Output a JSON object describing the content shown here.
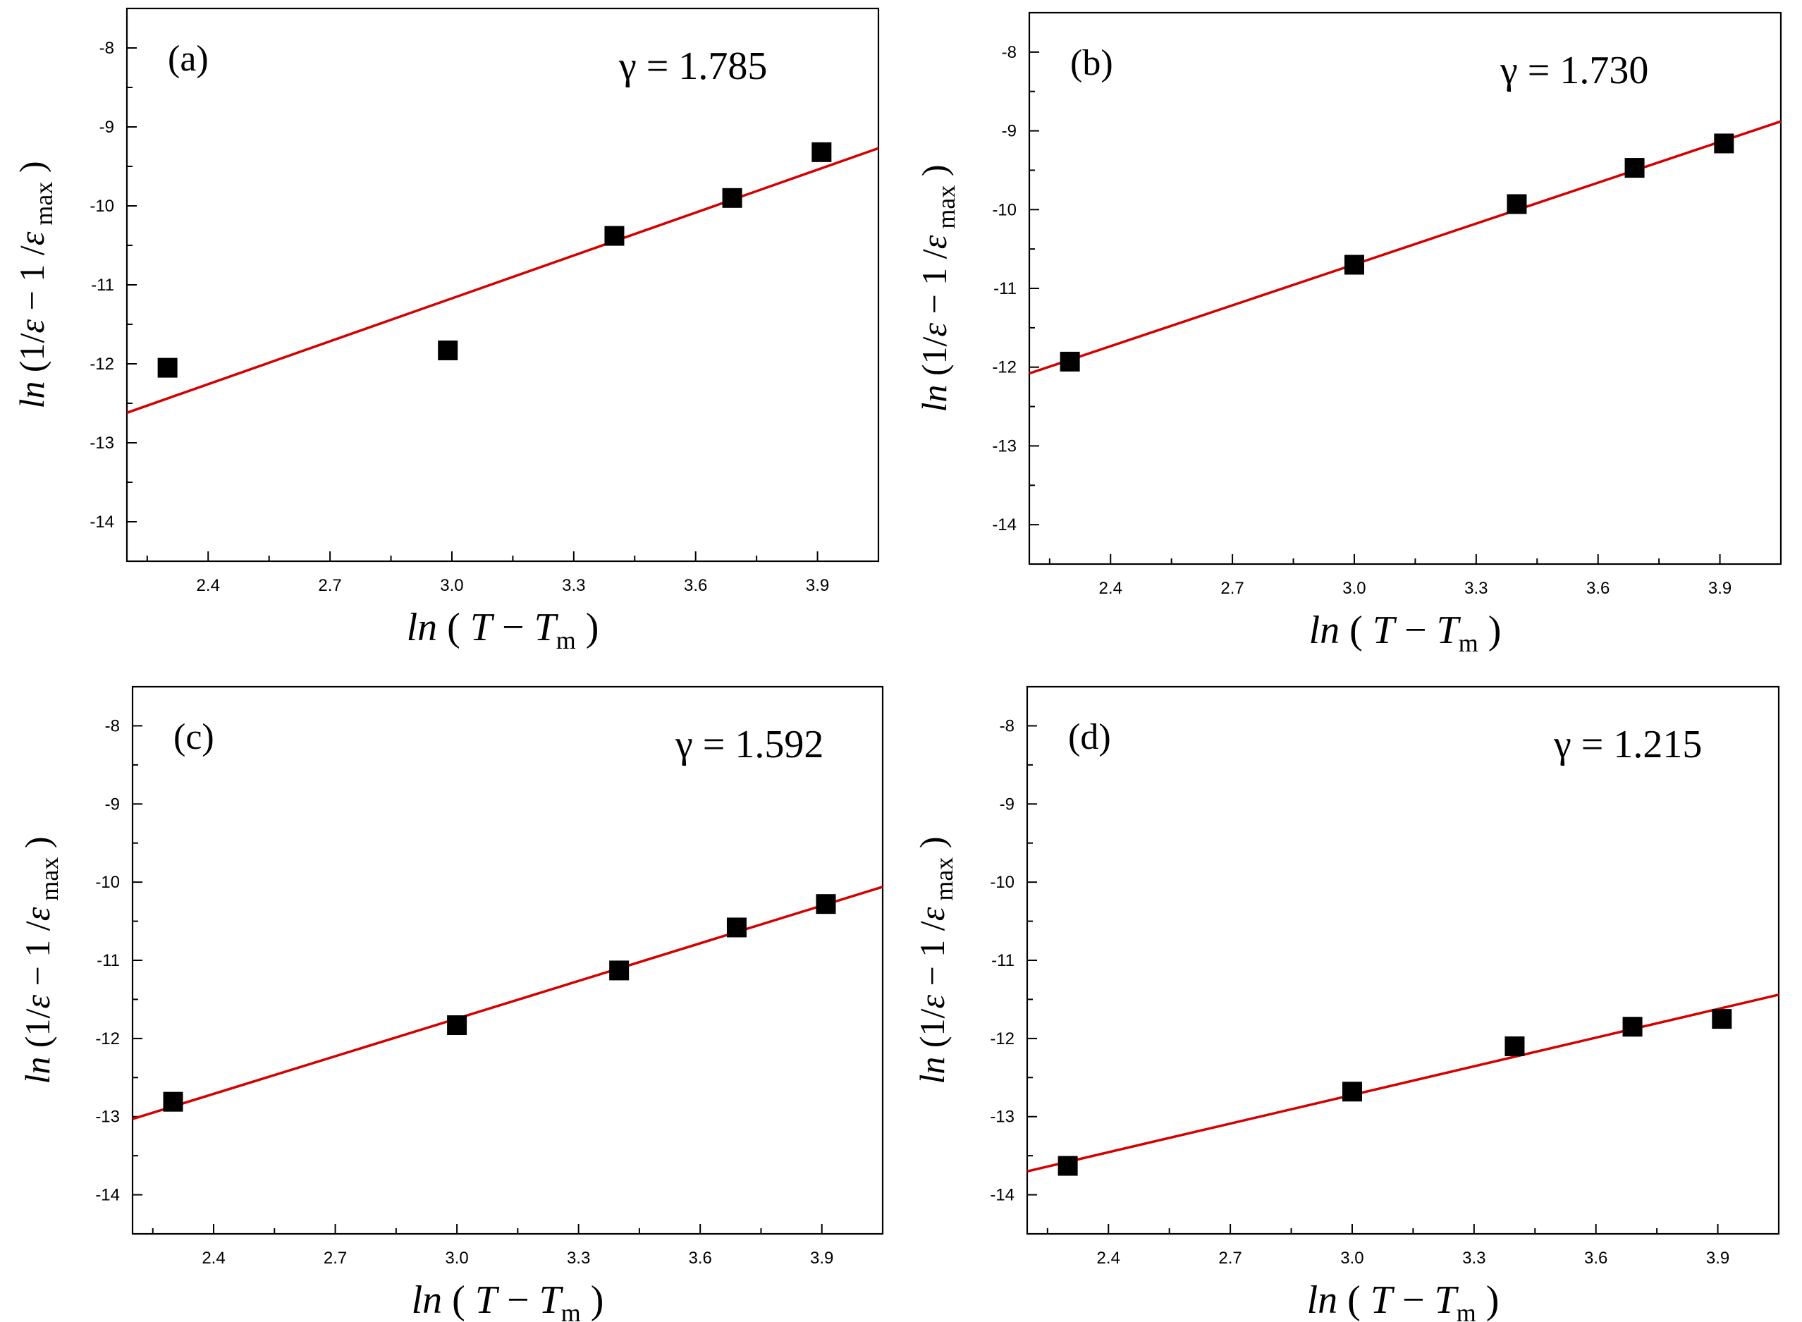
{
  "chart_data": [
    {
      "type": "scatter",
      "panel_label": "(a)",
      "annotation": "γ = 1.785",
      "xlim": [
        2.2,
        4.05
      ],
      "ylim": [
        -14.5,
        -7.5
      ],
      "xticks": [
        "2.4",
        "2.7",
        "3.0",
        "3.3",
        "3.6",
        "3.9"
      ],
      "yticks": [
        "-8",
        "-9",
        "-10",
        "-11",
        "-12",
        "-13",
        "-14"
      ],
      "points": [
        {
          "x": 2.3,
          "y": -12.05
        },
        {
          "x": 2.99,
          "y": -11.83
        },
        {
          "x": 3.4,
          "y": -10.38
        },
        {
          "x": 3.69,
          "y": -9.9
        },
        {
          "x": 3.91,
          "y": -9.32
        }
      ],
      "fit_line": {
        "x": [
          2.2,
          4.05
        ],
        "y": [
          -12.62,
          -9.27
        ]
      }
    },
    {
      "type": "scatter",
      "panel_label": "(b)",
      "annotation": "γ = 1.730",
      "xlim": [
        2.2,
        4.05
      ],
      "ylim": [
        -14.5,
        -7.5
      ],
      "xticks": [
        "2.4",
        "2.7",
        "3.0",
        "3.3",
        "3.6",
        "3.9"
      ],
      "yticks": [
        "-8",
        "-9",
        "-10",
        "-11",
        "-12",
        "-13",
        "-14"
      ],
      "points": [
        {
          "x": 2.3,
          "y": -11.93
        },
        {
          "x": 3.0,
          "y": -10.7
        },
        {
          "x": 3.4,
          "y": -9.93
        },
        {
          "x": 3.69,
          "y": -9.47
        },
        {
          "x": 3.91,
          "y": -9.16
        }
      ],
      "fit_line": {
        "x": [
          2.2,
          4.05
        ],
        "y": [
          -12.08,
          -8.88
        ]
      }
    },
    {
      "type": "scatter",
      "panel_label": "(c)",
      "annotation": "γ = 1.592",
      "xlim": [
        2.2,
        4.05
      ],
      "ylim": [
        -14.5,
        -7.5
      ],
      "xticks": [
        "2.4",
        "2.7",
        "3.0",
        "3.3",
        "3.6",
        "3.9"
      ],
      "yticks": [
        "-8",
        "-9",
        "-10",
        "-11",
        "-12",
        "-13",
        "-14"
      ],
      "points": [
        {
          "x": 2.3,
          "y": -12.81
        },
        {
          "x": 3.0,
          "y": -11.83
        },
        {
          "x": 3.4,
          "y": -11.13
        },
        {
          "x": 3.69,
          "y": -10.58
        },
        {
          "x": 3.91,
          "y": -10.28
        }
      ],
      "fit_line": {
        "x": [
          2.2,
          4.05
        ],
        "y": [
          -13.03,
          -10.06
        ]
      }
    },
    {
      "type": "scatter",
      "panel_label": "(d)",
      "annotation": "γ = 1.215",
      "xlim": [
        2.2,
        4.05
      ],
      "ylim": [
        -14.5,
        -7.5
      ],
      "xticks": [
        "2.4",
        "2.7",
        "3.0",
        "3.3",
        "3.6",
        "3.9"
      ],
      "yticks": [
        "-8",
        "-9",
        "-10",
        "-11",
        "-12",
        "-13",
        "-14"
      ],
      "points": [
        {
          "x": 2.3,
          "y": -13.63
        },
        {
          "x": 3.0,
          "y": -12.68
        },
        {
          "x": 3.4,
          "y": -12.1
        },
        {
          "x": 3.69,
          "y": -11.85
        },
        {
          "x": 3.91,
          "y": -11.75
        }
      ],
      "fit_line": {
        "x": [
          2.2,
          4.05
        ],
        "y": [
          -13.7,
          -11.44
        ]
      }
    }
  ],
  "axis_labels": {
    "x": {
      "fn": "ln",
      "open": " ( ",
      "var": "T",
      "minus": " − ",
      "sub_var": "T",
      "sub": "m",
      "close": " )"
    },
    "y": {
      "fn": "ln",
      "open": " (1/",
      "eps1": "ε",
      "mid": " − 1 /",
      "eps2": "ε",
      "sub": " max",
      "close": " )"
    }
  }
}
